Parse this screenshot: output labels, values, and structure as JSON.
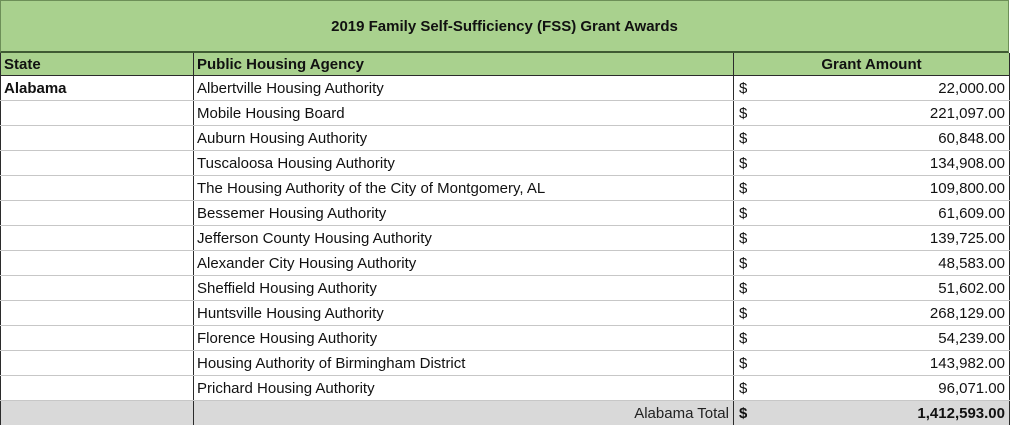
{
  "title": "2019 Family Self-Sufficiency (FSS) Grant Awards",
  "headers": {
    "state": "State",
    "agency": "Public Housing Agency",
    "amount": "Grant Amount"
  },
  "currency_symbol": "$",
  "rows": [
    {
      "state": "Alabama",
      "agency": "Albertville Housing Authority",
      "amount": "22,000.00"
    },
    {
      "state": "",
      "agency": "Mobile Housing Board",
      "amount": "221,097.00"
    },
    {
      "state": "",
      "agency": "Auburn Housing Authority",
      "amount": "60,848.00"
    },
    {
      "state": "",
      "agency": "Tuscaloosa Housing Authority",
      "amount": "134,908.00"
    },
    {
      "state": "",
      "agency": "The Housing Authority of the City of Montgomery, AL",
      "amount": "109,800.00"
    },
    {
      "state": "",
      "agency": "Bessemer Housing Authority",
      "amount": "61,609.00"
    },
    {
      "state": "",
      "agency": "Jefferson County Housing Authority",
      "amount": "139,725.00"
    },
    {
      "state": "",
      "agency": "Alexander City Housing Authority",
      "amount": "48,583.00"
    },
    {
      "state": "",
      "agency": "Sheffield Housing Authority",
      "amount": "51,602.00"
    },
    {
      "state": "",
      "agency": "Huntsville Housing Authority",
      "amount": "268,129.00"
    },
    {
      "state": "",
      "agency": "Florence Housing Authority",
      "amount": "54,239.00"
    },
    {
      "state": "",
      "agency": "Housing Authority of Birmingham District",
      "amount": "143,982.00"
    },
    {
      "state": "",
      "agency": "Prichard Housing Authority",
      "amount": "96,071.00"
    }
  ],
  "total": {
    "label": "Alabama Total",
    "amount": "1,412,593.00"
  },
  "colors": {
    "header_green": "#a9d18e",
    "total_gray": "#d9d9d9"
  }
}
